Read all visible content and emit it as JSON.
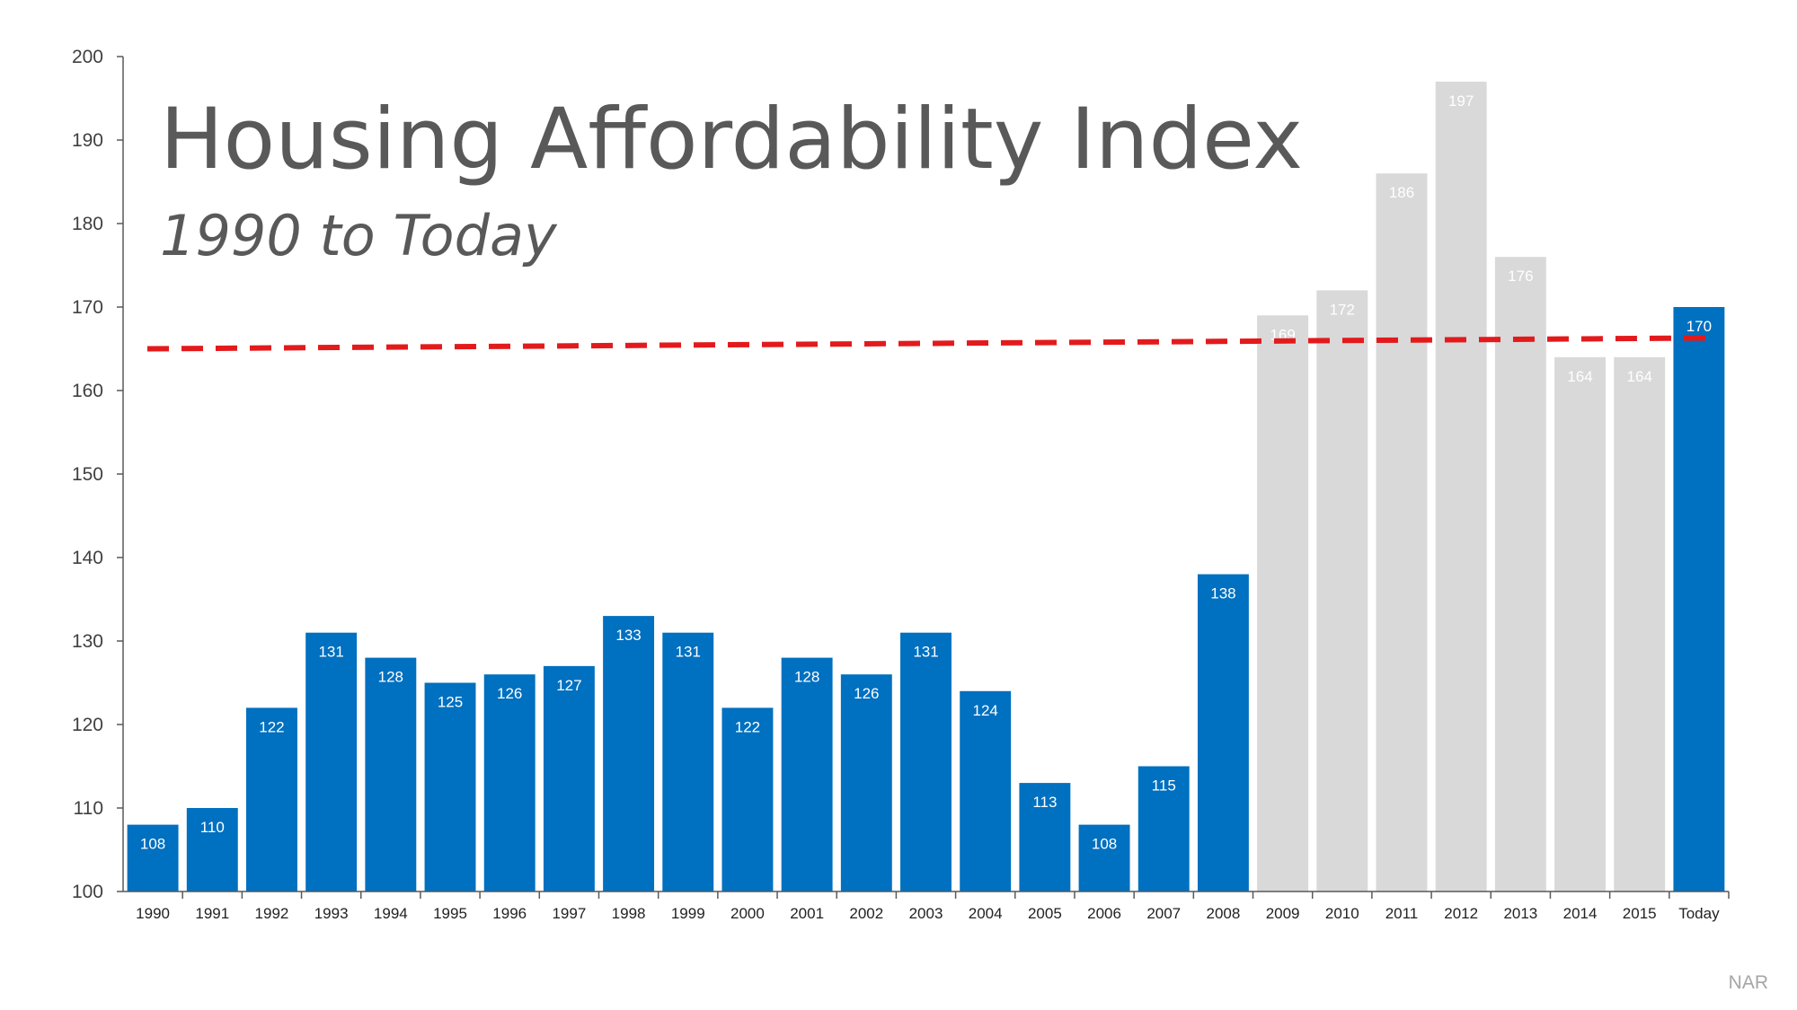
{
  "chart_data": {
    "type": "bar",
    "title": "Housing Affordability Index",
    "subtitle": "1990 to Today",
    "source": "NAR",
    "xlabel": "",
    "ylabel": "",
    "ylim": [
      100,
      200
    ],
    "yticks": [
      "100",
      "110",
      "120",
      "130",
      "140",
      "150",
      "160",
      "170",
      "180",
      "190",
      "200"
    ],
    "grid": false,
    "categories": [
      "1990",
      "1991",
      "1992",
      "1993",
      "1994",
      "1995",
      "1996",
      "1997",
      "1998",
      "1999",
      "2000",
      "2001",
      "2002",
      "2003",
      "2004",
      "2005",
      "2006",
      "2007",
      "2008",
      "2009",
      "2010",
      "2011",
      "2012",
      "2013",
      "2014",
      "2015",
      "Today"
    ],
    "values": [
      108,
      110,
      122,
      131,
      128,
      125,
      126,
      127,
      133,
      131,
      122,
      128,
      126,
      131,
      124,
      113,
      108,
      115,
      138,
      169,
      172,
      186,
      197,
      176,
      164,
      164,
      170
    ],
    "highlight": [
      true,
      true,
      true,
      true,
      true,
      true,
      true,
      true,
      true,
      true,
      true,
      true,
      true,
      true,
      true,
      true,
      true,
      true,
      true,
      false,
      false,
      false,
      false,
      false,
      false,
      false,
      true
    ],
    "colors": {
      "highlight": "#0070C0",
      "muted": "#D9D9D9",
      "trend": "#E31A1C",
      "axis": "#595959"
    },
    "trend_line": {
      "style": "dashed",
      "start_value": 165,
      "end_value": 166.3
    }
  }
}
